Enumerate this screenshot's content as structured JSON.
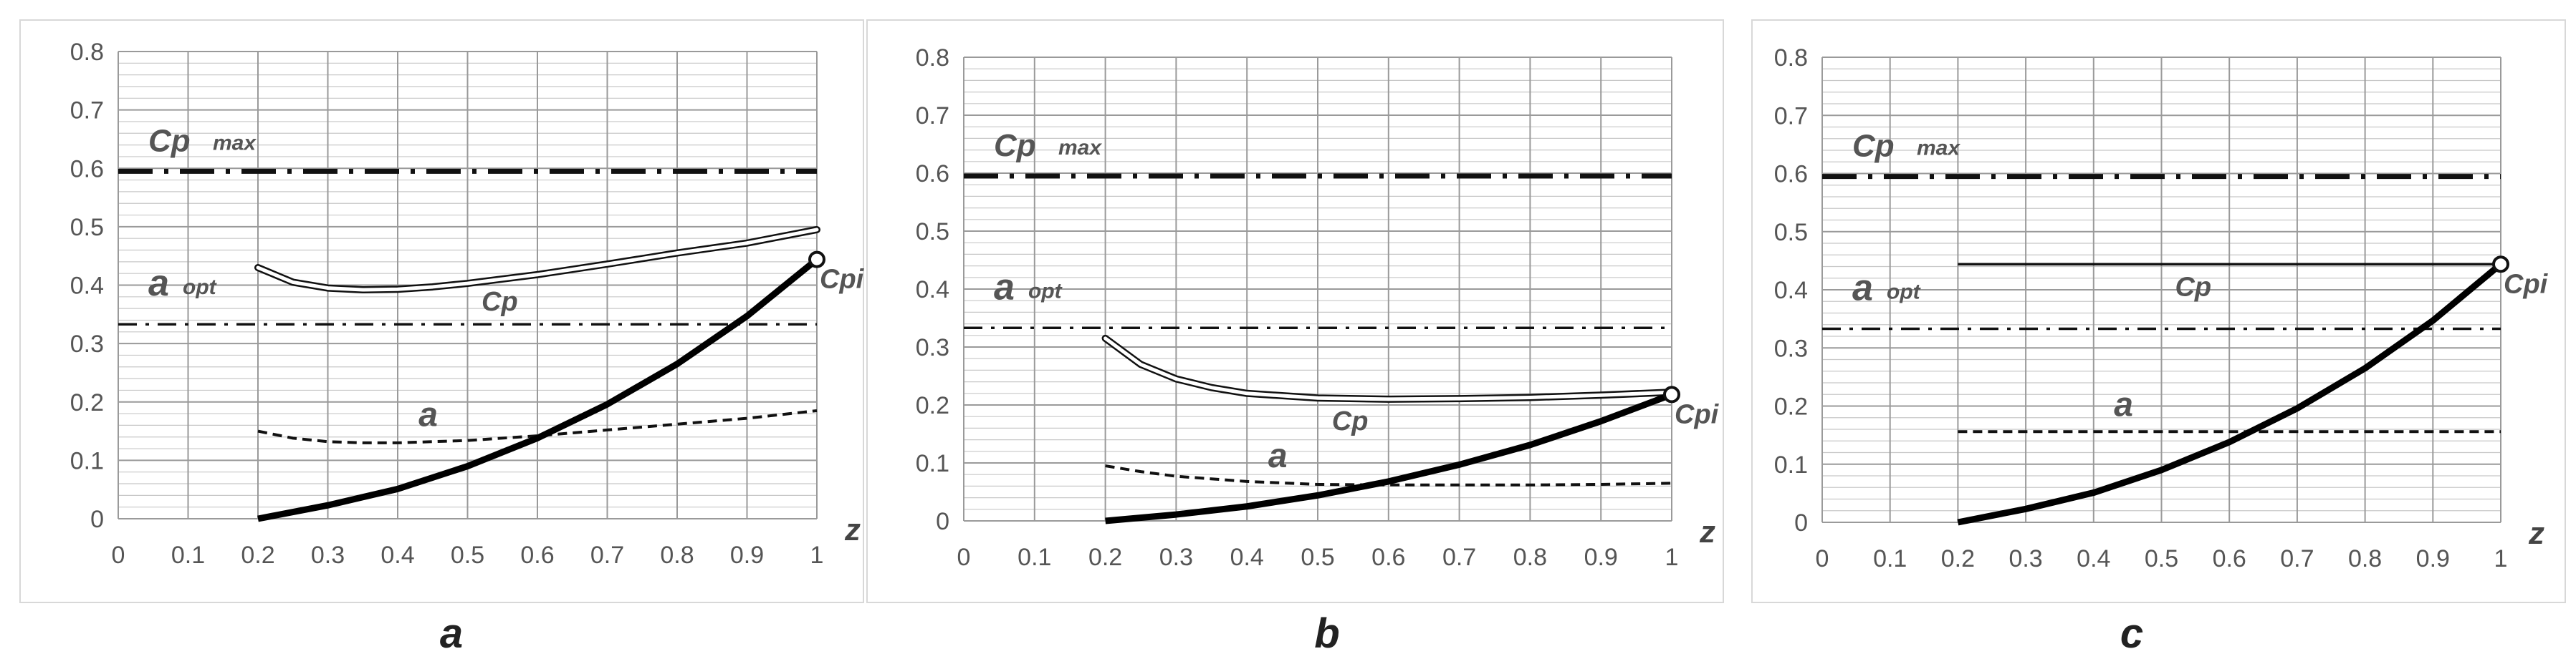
{
  "chart_data": [
    {
      "type": "line",
      "panel_label": "a",
      "x_ticks": [
        "0",
        "0.1",
        "0.2",
        "0.3",
        "0.4",
        "0.5",
        "0.6",
        "0.7",
        "0.8",
        "0.9",
        "1"
      ],
      "y_ticks": [
        "0",
        "0.1",
        "0.2",
        "0.3",
        "0.4",
        "0.5",
        "0.6",
        "0.7",
        "0.8"
      ],
      "xlim": [
        0,
        1
      ],
      "ylim": [
        0,
        0.8
      ],
      "xlabel": "z",
      "ylabel": "",
      "grid": true,
      "series": [
        {
          "name": "Cp max",
          "style": "long-dash-dot",
          "x": [
            0,
            1
          ],
          "y": [
            0.595,
            0.595
          ]
        },
        {
          "name": "a opt",
          "style": "dash-dot",
          "x": [
            0,
            1
          ],
          "y": [
            0.333,
            0.333
          ]
        },
        {
          "name": "Cp",
          "style": "double-line",
          "x": [
            0.2,
            0.25,
            0.3,
            0.35,
            0.4,
            0.45,
            0.5,
            0.6,
            0.7,
            0.8,
            0.9,
            1.0
          ],
          "y": [
            0.43,
            0.405,
            0.395,
            0.392,
            0.393,
            0.397,
            0.403,
            0.418,
            0.436,
            0.455,
            0.472,
            0.495
          ]
        },
        {
          "name": "a",
          "style": "dashed",
          "x": [
            0.2,
            0.25,
            0.3,
            0.35,
            0.4,
            0.5,
            0.6,
            0.7,
            0.8,
            0.9,
            1.0
          ],
          "y": [
            0.15,
            0.138,
            0.132,
            0.13,
            0.13,
            0.134,
            0.142,
            0.152,
            0.162,
            0.172,
            0.185
          ]
        },
        {
          "name": "Cpi",
          "style": "thick",
          "marker_at_end": true,
          "x": [
            0.2,
            0.3,
            0.4,
            0.5,
            0.6,
            0.7,
            0.8,
            0.9,
            1.0
          ],
          "y": [
            0,
            0.023,
            0.051,
            0.09,
            0.138,
            0.196,
            0.265,
            0.347,
            0.444
          ]
        }
      ],
      "annotations": [
        "Cp",
        "max",
        "a",
        "opt",
        "Cp",
        "a",
        "Cpi"
      ]
    },
    {
      "type": "line",
      "panel_label": "b",
      "x_ticks": [
        "0",
        "0.1",
        "0.2",
        "0.3",
        "0.4",
        "0.5",
        "0.6",
        "0.7",
        "0.8",
        "0.9",
        "1"
      ],
      "y_ticks": [
        "0",
        "0.1",
        "0.2",
        "0.3",
        "0.4",
        "0.5",
        "0.6",
        "0.7",
        "0.8"
      ],
      "xlim": [
        0,
        1
      ],
      "ylim": [
        0,
        0.8
      ],
      "xlabel": "z",
      "ylabel": "",
      "grid": true,
      "series": [
        {
          "name": "Cp max",
          "style": "long-dash-dot",
          "x": [
            0,
            1
          ],
          "y": [
            0.595,
            0.595
          ]
        },
        {
          "name": "a opt",
          "style": "dash-dot",
          "x": [
            0,
            1
          ],
          "y": [
            0.333,
            0.333
          ]
        },
        {
          "name": "Cp",
          "style": "double-line",
          "x": [
            0.2,
            0.25,
            0.3,
            0.35,
            0.4,
            0.5,
            0.6,
            0.7,
            0.8,
            0.9,
            1.0
          ],
          "y": [
            0.315,
            0.27,
            0.245,
            0.23,
            0.22,
            0.212,
            0.21,
            0.211,
            0.213,
            0.217,
            0.222
          ]
        },
        {
          "name": "a",
          "style": "dashed",
          "x": [
            0.2,
            0.25,
            0.3,
            0.4,
            0.5,
            0.6,
            0.7,
            0.8,
            0.9,
            1.0
          ],
          "y": [
            0.095,
            0.085,
            0.077,
            0.068,
            0.063,
            0.062,
            0.062,
            0.062,
            0.063,
            0.065
          ]
        },
        {
          "name": "Cpi",
          "style": "thick",
          "marker_at_end": true,
          "x": [
            0.2,
            0.3,
            0.4,
            0.5,
            0.6,
            0.7,
            0.8,
            0.9,
            1.0
          ],
          "y": [
            0,
            0.011,
            0.025,
            0.044,
            0.068,
            0.097,
            0.131,
            0.172,
            0.218
          ]
        }
      ],
      "annotations": [
        "Cp",
        "max",
        "a",
        "opt",
        "Cp",
        "a",
        "Cpi"
      ]
    },
    {
      "type": "line",
      "panel_label": "c",
      "x_ticks": [
        "0",
        "0.1",
        "0.2",
        "0.3",
        "0.4",
        "0.5",
        "0.6",
        "0.7",
        "0.8",
        "0.9",
        "1"
      ],
      "y_ticks": [
        "0",
        "0.1",
        "0.2",
        "0.3",
        "0.4",
        "0.5",
        "0.6",
        "0.7",
        "0.8"
      ],
      "xlim": [
        0,
        1
      ],
      "ylim": [
        0,
        0.8
      ],
      "xlabel": "z",
      "ylabel": "",
      "grid": true,
      "series": [
        {
          "name": "Cp max",
          "style": "long-dash-dot",
          "x": [
            0,
            1
          ],
          "y": [
            0.595,
            0.595
          ]
        },
        {
          "name": "a opt",
          "style": "dash-dot",
          "x": [
            0,
            1
          ],
          "y": [
            0.333,
            0.333
          ]
        },
        {
          "name": "Cp",
          "style": "single-line",
          "x": [
            0.2,
            1.0
          ],
          "y": [
            0.444,
            0.444
          ]
        },
        {
          "name": "a",
          "style": "dashed",
          "x": [
            0.2,
            1.0
          ],
          "y": [
            0.156,
            0.156
          ]
        },
        {
          "name": "Cpi",
          "style": "thick",
          "marker_at_end": true,
          "x": [
            0.2,
            0.3,
            0.4,
            0.5,
            0.6,
            0.7,
            0.8,
            0.9,
            1.0
          ],
          "y": [
            0,
            0.023,
            0.051,
            0.09,
            0.138,
            0.196,
            0.265,
            0.347,
            0.444
          ]
        }
      ],
      "annotations": [
        "Cp",
        "max",
        "a",
        "opt",
        "Cp",
        "a",
        "Cpi"
      ]
    }
  ]
}
